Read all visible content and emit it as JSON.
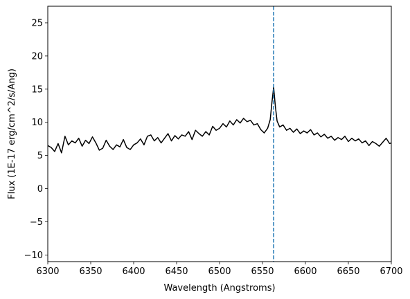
{
  "chart_data": {
    "type": "line",
    "xlabel": "Wavelength (Angstroms)",
    "ylabel": "Flux (1E-17 erg/cm^2/s/Ang)",
    "xlim": [
      6300,
      6700
    ],
    "ylim": [
      -11,
      27.5
    ],
    "xticks": [
      6300,
      6350,
      6400,
      6450,
      6500,
      6550,
      6600,
      6650,
      6700
    ],
    "yticks": [
      -10,
      -5,
      0,
      5,
      10,
      15,
      20,
      25
    ],
    "grid": false,
    "colors": {
      "spectrum": "#000000",
      "marker": "#1f77b4"
    },
    "reference_line": {
      "x": 6563,
      "style": "dashed"
    },
    "series": [
      {
        "x": [
          6300,
          6304,
          6308,
          6312,
          6316,
          6320,
          6324,
          6328,
          6332,
          6336,
          6340,
          6344,
          6348,
          6352,
          6356,
          6360,
          6364,
          6368,
          6372,
          6376,
          6380,
          6384,
          6388,
          6392,
          6396,
          6400,
          6404,
          6408,
          6412,
          6416,
          6420,
          6424,
          6428,
          6432,
          6436,
          6440,
          6444,
          6448,
          6452,
          6456,
          6460,
          6464,
          6468,
          6472,
          6476,
          6480,
          6484,
          6488,
          6492,
          6496,
          6500,
          6504,
          6508,
          6512,
          6516,
          6520,
          6524,
          6528,
          6532,
          6536,
          6540,
          6544,
          6548,
          6552,
          6556,
          6559,
          6561,
          6563,
          6565,
          6567,
          6570,
          6574,
          6578,
          6582,
          6586,
          6590,
          6594,
          6598,
          6602,
          6606,
          6610,
          6614,
          6618,
          6622,
          6626,
          6630,
          6634,
          6638,
          6642,
          6646,
          6650,
          6654,
          6658,
          6662,
          6666,
          6670,
          6674,
          6678,
          6682,
          6686,
          6690,
          6694,
          6698,
          6700
        ],
        "y": [
          6.5,
          6.2,
          5.6,
          6.8,
          5.4,
          7.9,
          6.6,
          7.2,
          6.9,
          7.6,
          6.4,
          7.3,
          6.8,
          7.8,
          6.9,
          5.8,
          6.1,
          7.3,
          6.4,
          5.9,
          6.6,
          6.3,
          7.4,
          6.2,
          5.9,
          6.6,
          6.9,
          7.5,
          6.6,
          7.9,
          8.1,
          7.2,
          7.7,
          6.9,
          7.6,
          8.3,
          7.2,
          8.0,
          7.5,
          8.1,
          7.9,
          8.6,
          7.4,
          8.8,
          8.3,
          7.9,
          8.6,
          8.1,
          9.4,
          8.8,
          9.1,
          9.8,
          9.3,
          10.2,
          9.6,
          10.4,
          9.9,
          10.6,
          10.1,
          10.3,
          9.6,
          9.8,
          8.9,
          8.4,
          9.1,
          10.4,
          13.0,
          15.3,
          12.4,
          10.2,
          9.3,
          9.6,
          8.8,
          9.1,
          8.5,
          9.0,
          8.3,
          8.7,
          8.4,
          8.9,
          8.1,
          8.4,
          7.8,
          8.2,
          7.6,
          7.9,
          7.3,
          7.7,
          7.4,
          7.9,
          7.1,
          7.6,
          7.2,
          7.5,
          6.9,
          7.2,
          6.5,
          7.1,
          6.8,
          6.4,
          7.0,
          7.6,
          6.8,
          6.9
        ]
      }
    ]
  }
}
